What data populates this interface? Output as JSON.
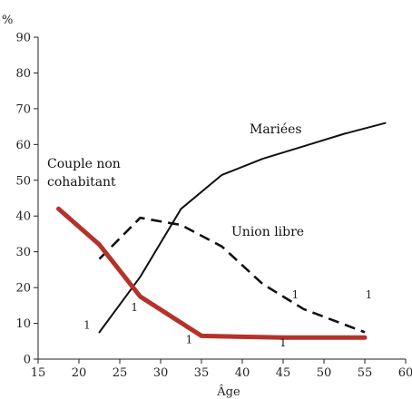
{
  "chart_data": {
    "type": "line",
    "y_unit": "%",
    "xlabel": "Âge",
    "xlim": [
      15,
      60
    ],
    "ylim": [
      0,
      90
    ],
    "x_ticks": [
      15,
      20,
      25,
      30,
      35,
      40,
      45,
      50,
      55,
      60
    ],
    "y_ticks": [
      0,
      10,
      20,
      30,
      40,
      50,
      60,
      70,
      80,
      90
    ],
    "grid": false,
    "series": [
      {
        "name": "Mariées",
        "color": "#111111",
        "style": "solid",
        "points": [
          [
            22.5,
            7.5
          ],
          [
            27.5,
            23
          ],
          [
            32.5,
            42
          ],
          [
            37.5,
            51.5
          ],
          [
            42.5,
            56
          ],
          [
            47.5,
            59.5
          ],
          [
            52.5,
            63
          ],
          [
            57.5,
            66
          ]
        ]
      },
      {
        "name": "Union libre",
        "color": "#111111",
        "style": "dashed",
        "points": [
          [
            22.5,
            28
          ],
          [
            27.5,
            39.5
          ],
          [
            32.5,
            37.5
          ],
          [
            37.5,
            31.5
          ],
          [
            42.5,
            21
          ],
          [
            47.5,
            14
          ],
          [
            55,
            7.5
          ]
        ]
      },
      {
        "name": "Couple non cohabitant",
        "label_lines": [
          "Couple non",
          "cohabitant"
        ],
        "color": "#b5322a",
        "style": "solid-thick",
        "points": [
          [
            17.5,
            42
          ],
          [
            22.5,
            32
          ],
          [
            27.5,
            17.5
          ],
          [
            35,
            6.5
          ],
          [
            45,
            6
          ],
          [
            55,
            6
          ]
        ]
      }
    ],
    "annotations": [
      {
        "text": "1",
        "x": 21,
        "y": 8.5
      },
      {
        "text": "1",
        "x": 26.8,
        "y": 13.5
      },
      {
        "text": "1",
        "x": 33.5,
        "y": 4.5
      },
      {
        "text": "1",
        "x": 45,
        "y": 3.5
      },
      {
        "text": "1",
        "x": 46.5,
        "y": 17
      },
      {
        "text": "1",
        "x": 55.5,
        "y": 17
      }
    ]
  }
}
